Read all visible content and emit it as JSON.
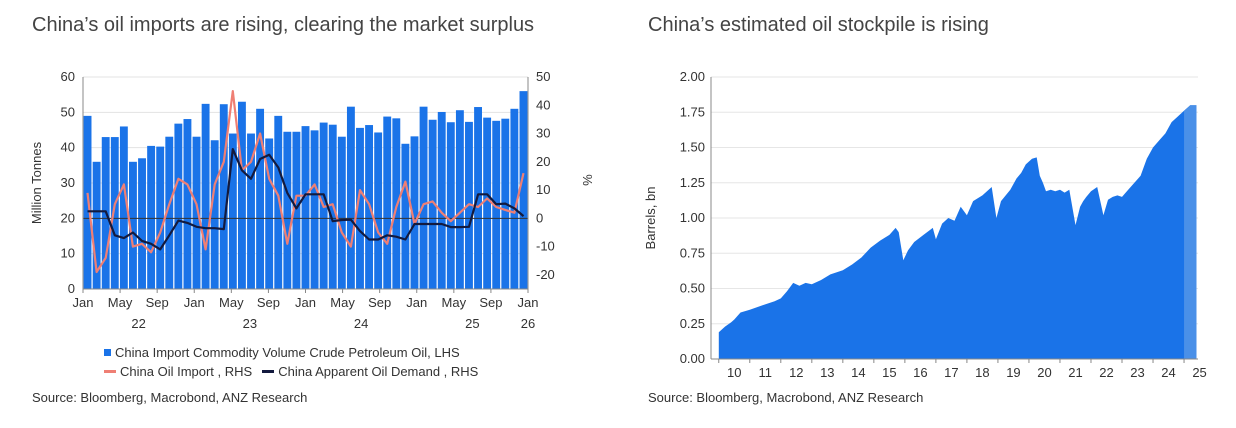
{
  "left_title": "China’s oil imports are rising, clearing the market surplus",
  "right_title": "China’s estimated oil stockpile is rising",
  "left_source": "Source: Bloomberg, Macrobond, ANZ Research",
  "right_source": "Source: Bloomberg, Macrobond, ANZ Research",
  "colors": {
    "bars": "#1a73e8",
    "import_line": "#ef7f74",
    "demand_line": "#131a3e",
    "area": "#1a73e8"
  },
  "chart_data": [
    {
      "type": "bar+line",
      "ylabel": "Million Tonnes",
      "y2label": "%",
      "ylim": [
        0,
        60
      ],
      "y2lim": [
        -25,
        50
      ],
      "yticks": [
        "0",
        "10",
        "20",
        "30",
        "40",
        "50",
        "60"
      ],
      "y2ticks": [
        "-20",
        "-10",
        "0",
        "10",
        "20",
        "30",
        "40",
        "50"
      ],
      "xticks": [
        "Jan",
        "May",
        "Sep",
        "Jan",
        "May",
        "Sep",
        "Jan",
        "May",
        "Sep",
        "Jan",
        "May",
        "Sep",
        "Jan"
      ],
      "year_labels": [
        "22",
        "23",
        "24",
        "25",
        "26"
      ],
      "series": [
        {
          "name": "China Import Commodity Volume Crude Petroleum Oil, LHS",
          "kind": "bar",
          "values": [
            49,
            36,
            43,
            43,
            46,
            36,
            37,
            40.5,
            40.3,
            43.1,
            46.8,
            48.1,
            43.1,
            52.4,
            42.1,
            52.3,
            44,
            53,
            44,
            51,
            42.6,
            49,
            44.5,
            44.5,
            46.1,
            44.9,
            47.1,
            46.5,
            43.1,
            51.6,
            45.6,
            46.4,
            44.3,
            48.8,
            48.3,
            41.1,
            43.2,
            51.6,
            47.9,
            50.1,
            47.2,
            50.6,
            47.3,
            51.5,
            48.5,
            47.6,
            48.2,
            51,
            56
          ]
        },
        {
          "name": "China Oil Import , RHS",
          "kind": "line",
          "values": [
            9,
            -19,
            -14,
            5,
            12,
            -10,
            -9,
            -12,
            -5,
            5,
            14,
            12,
            5,
            -11,
            12,
            20,
            45,
            17,
            20,
            30,
            14,
            8,
            -9,
            8,
            8,
            12,
            4,
            5,
            -5,
            -10,
            10,
            5,
            -5,
            -9,
            4,
            13,
            -2,
            5,
            6,
            2,
            -1,
            2,
            5,
            4,
            7,
            4,
            3,
            2,
            16
          ]
        },
        {
          "name": "China Apparent Oil Demand , RHS",
          "kind": "line",
          "values": [
            2.5,
            2.5,
            2.5,
            -6,
            -7,
            -5,
            -8,
            -9,
            -11,
            -6,
            -0.8,
            -1.6,
            -3,
            -3.5,
            -3.5,
            -3.8,
            24.5,
            17,
            14,
            21,
            22.5,
            18,
            9,
            3.5,
            8.5,
            8.5,
            8.5,
            -1,
            -0.6,
            -0.5,
            -4.5,
            -7.5,
            -7.5,
            -6,
            -6.5,
            -7.5,
            -2,
            -2,
            -2,
            -2,
            -3.1,
            -3.1,
            -3,
            8.5,
            8.5,
            5,
            5.2,
            3.5,
            0.8
          ]
        }
      ]
    },
    {
      "type": "area",
      "ylabel": "Barrels, bn",
      "ylim": [
        0,
        2.0
      ],
      "yticks": [
        "0.00",
        "0.25",
        "0.50",
        "0.75",
        "1.00",
        "1.25",
        "1.50",
        "1.75",
        "2.00"
      ],
      "xticks": [
        "10",
        "11",
        "12",
        "13",
        "14",
        "15",
        "16",
        "17",
        "18",
        "19",
        "20",
        "21",
        "22",
        "23",
        "24",
        "25"
      ],
      "x": [
        2010.0,
        2010.2,
        2010.4,
        2010.5,
        2010.7,
        2011.0,
        2011.4,
        2011.8,
        2012.0,
        2012.2,
        2012.4,
        2012.6,
        2012.8,
        2013.0,
        2013.3,
        2013.6,
        2014.0,
        2014.3,
        2014.6,
        2014.9,
        2015.2,
        2015.5,
        2015.7,
        2015.8,
        2015.95,
        2016.1,
        2016.3,
        2016.6,
        2016.9,
        2017.0,
        2017.2,
        2017.4,
        2017.6,
        2017.8,
        2018.0,
        2018.2,
        2018.5,
        2018.8,
        2018.95,
        2019.1,
        2019.4,
        2019.6,
        2019.75,
        2019.9,
        2020.1,
        2020.25,
        2020.35,
        2020.45,
        2020.55,
        2020.7,
        2020.85,
        2021.0,
        2021.15,
        2021.3,
        2021.5,
        2021.65,
        2021.75,
        2021.85,
        2022.0,
        2022.2,
        2022.4,
        2022.55,
        2022.7,
        2022.85,
        2023.0,
        2023.2,
        2023.4,
        2023.6,
        2023.8,
        2024.0,
        2024.2,
        2024.4,
        2024.6,
        2024.8,
        2025.0,
        2025.2,
        2025.4
      ],
      "values": [
        0.19,
        0.23,
        0.26,
        0.28,
        0.33,
        0.35,
        0.38,
        0.41,
        0.43,
        0.48,
        0.54,
        0.52,
        0.54,
        0.53,
        0.56,
        0.6,
        0.63,
        0.67,
        0.72,
        0.79,
        0.84,
        0.88,
        0.93,
        0.9,
        0.7,
        0.77,
        0.83,
        0.88,
        0.93,
        0.85,
        0.96,
        1.0,
        0.98,
        1.08,
        1.02,
        1.12,
        1.16,
        1.22,
        1.0,
        1.12,
        1.2,
        1.28,
        1.32,
        1.38,
        1.42,
        1.43,
        1.3,
        1.25,
        1.19,
        1.2,
        1.19,
        1.2,
        1.18,
        1.2,
        0.95,
        1.08,
        1.12,
        1.15,
        1.19,
        1.22,
        1.02,
        1.13,
        1.15,
        1.16,
        1.15,
        1.2,
        1.25,
        1.3,
        1.42,
        1.5,
        1.55,
        1.6,
        1.68,
        1.72,
        1.76,
        1.8,
        1.8
      ]
    }
  ]
}
